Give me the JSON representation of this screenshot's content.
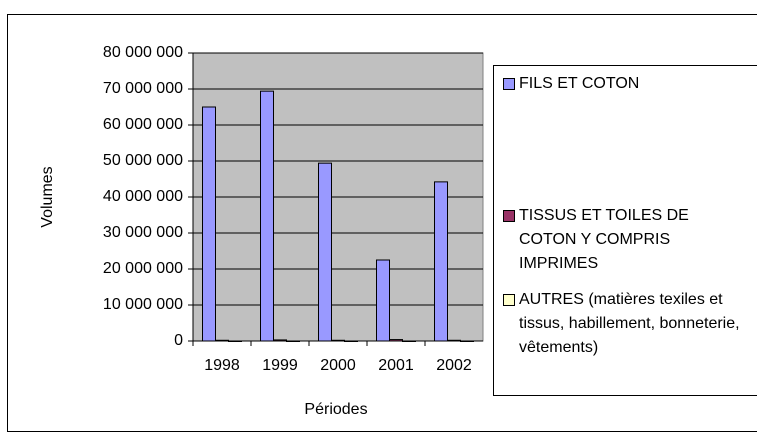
{
  "chart_data": {
    "type": "bar",
    "y_label": "Volumes",
    "x_label": "Périodes",
    "categories": [
      "1998",
      "1999",
      "2000",
      "2001",
      "2002"
    ],
    "series": [
      {
        "name": "FILS ET COTON",
        "color": "#9999ff",
        "values": [
          65000000,
          69400000,
          49400000,
          22500000,
          44200000
        ]
      },
      {
        "name": "TISSUS ET TOILES DE COTON Y COMPRIS IMPRIMES",
        "color": "#993366",
        "values": [
          200000,
          300000,
          200000,
          400000,
          200000
        ]
      },
      {
        "name": "AUTRES (matières texiles et tissus, habillement, bonneterie, vêtements)",
        "color": "#ffffcc",
        "values": [
          0,
          0,
          0,
          0,
          0
        ]
      }
    ],
    "ylim": [
      0,
      80000000
    ],
    "yticks": [
      0,
      {
        "value": 10000000,
        "label": "10 000 000"
      },
      {
        "value": 20000000,
        "label": "20 000 000"
      },
      {
        "value": 30000000,
        "label": "30 000 000"
      },
      {
        "value": 40000000,
        "label": "40 000 000"
      },
      {
        "value": 50000000,
        "label": "50 000 000"
      },
      {
        "value": 60000000,
        "label": "60 000 000"
      },
      {
        "value": 70000000,
        "label": "70 000 000"
      },
      {
        "value": 80000000,
        "label": "80 000 000"
      }
    ],
    "grid": true,
    "plot_background": "#c0c0c0",
    "legend": "right"
  }
}
